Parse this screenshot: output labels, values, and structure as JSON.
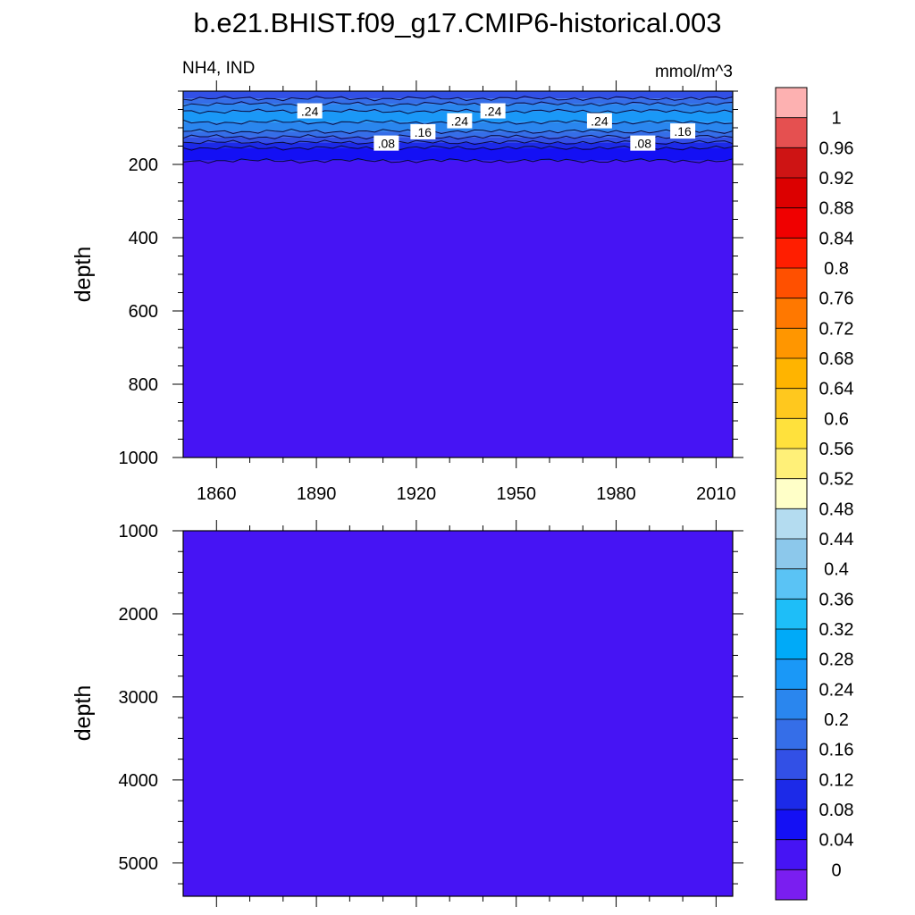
{
  "title": "b.e21.BHIST.f09_g17.CMIP6-historical.003",
  "left_string": "NH4, IND",
  "right_string": "mmol/m^3",
  "chart_data": [
    {
      "type": "heatmap",
      "panel": "upper",
      "xlabel": "",
      "ylabel": "depth",
      "xlim": [
        1850,
        2015
      ],
      "ylim": [
        1000,
        0
      ],
      "xticks": [
        "1860",
        "1890",
        "1920",
        "1950",
        "1980",
        "2010"
      ],
      "yticks": [
        "200",
        "400",
        "600",
        "800",
        "1000"
      ],
      "depth_bands": [
        {
          "from_depth": 0,
          "to_depth": 20,
          "level_min": 0.12,
          "color": "#3250e6"
        },
        {
          "from_depth": 20,
          "to_depth": 35,
          "level_min": 0.16,
          "color": "#356ee8"
        },
        {
          "from_depth": 35,
          "to_depth": 55,
          "level_min": 0.2,
          "color": "#2a86ee"
        },
        {
          "from_depth": 55,
          "to_depth": 85,
          "level_min": 0.24,
          "color": "#1a98f7"
        },
        {
          "from_depth": 85,
          "to_depth": 110,
          "level_min": 0.2,
          "color": "#2a86ee"
        },
        {
          "from_depth": 110,
          "to_depth": 125,
          "level_min": 0.16,
          "color": "#356ee8"
        },
        {
          "from_depth": 125,
          "to_depth": 140,
          "level_min": 0.12,
          "color": "#3250e6"
        },
        {
          "from_depth": 140,
          "to_depth": 155,
          "level_min": 0.08,
          "color": "#1c2ae8"
        },
        {
          "from_depth": 155,
          "to_depth": 190,
          "level_min": 0.04,
          "color": "#1410f4"
        },
        {
          "from_depth": 190,
          "to_depth": 1000,
          "level_min": 0.0,
          "color": "#4614f4"
        }
      ],
      "contour_labels": [
        {
          "text": ".24",
          "year": 1888,
          "depth": 55
        },
        {
          "text": ".24",
          "year": 1943,
          "depth": 55
        },
        {
          "text": ".24",
          "year": 1933,
          "depth": 82
        },
        {
          "text": ".24",
          "year": 1975,
          "depth": 82
        },
        {
          "text": ".16",
          "year": 1922,
          "depth": 112
        },
        {
          "text": ".16",
          "year": 2000,
          "depth": 110
        },
        {
          "text": ".08",
          "year": 1911,
          "depth": 143
        },
        {
          "text": ".08",
          "year": 1988,
          "depth": 143
        }
      ]
    },
    {
      "type": "heatmap",
      "panel": "lower",
      "xlabel": "",
      "ylabel": "depth",
      "xlim": [
        1850,
        2015
      ],
      "ylim": [
        5400,
        1000
      ],
      "yticks": [
        "1000",
        "2000",
        "3000",
        "4000",
        "5000"
      ],
      "depth_bands": [
        {
          "from_depth": 1000,
          "to_depth": 5400,
          "level_min": 0.0,
          "color": "#4614f4"
        }
      ]
    }
  ],
  "colorbar": {
    "labels": [
      "1",
      "0.96",
      "0.92",
      "0.88",
      "0.84",
      "0.8",
      "0.76",
      "0.72",
      "0.68",
      "0.64",
      "0.6",
      "0.56",
      "0.52",
      "0.48",
      "0.44",
      "0.4",
      "0.36",
      "0.32",
      "0.28",
      "0.24",
      "0.2",
      "0.16",
      "0.12",
      "0.08",
      "0.04",
      "0"
    ],
    "colors": [
      "#fdb1b1",
      "#e55050",
      "#ce1414",
      "#dc0000",
      "#f00000",
      "#ff1e00",
      "#ff5000",
      "#ff7800",
      "#ff9600",
      "#ffb400",
      "#ffc81e",
      "#ffe13c",
      "#fff078",
      "#ffffc8",
      "#b4dcf0",
      "#8cc8eb",
      "#5ac3f5",
      "#1ebef8",
      "#00aaf8",
      "#1a98f7",
      "#2a86ee",
      "#356ee8",
      "#3250e6",
      "#1c2ae8",
      "#1410f4",
      "#4614f4",
      "#7a1ef0"
    ]
  }
}
